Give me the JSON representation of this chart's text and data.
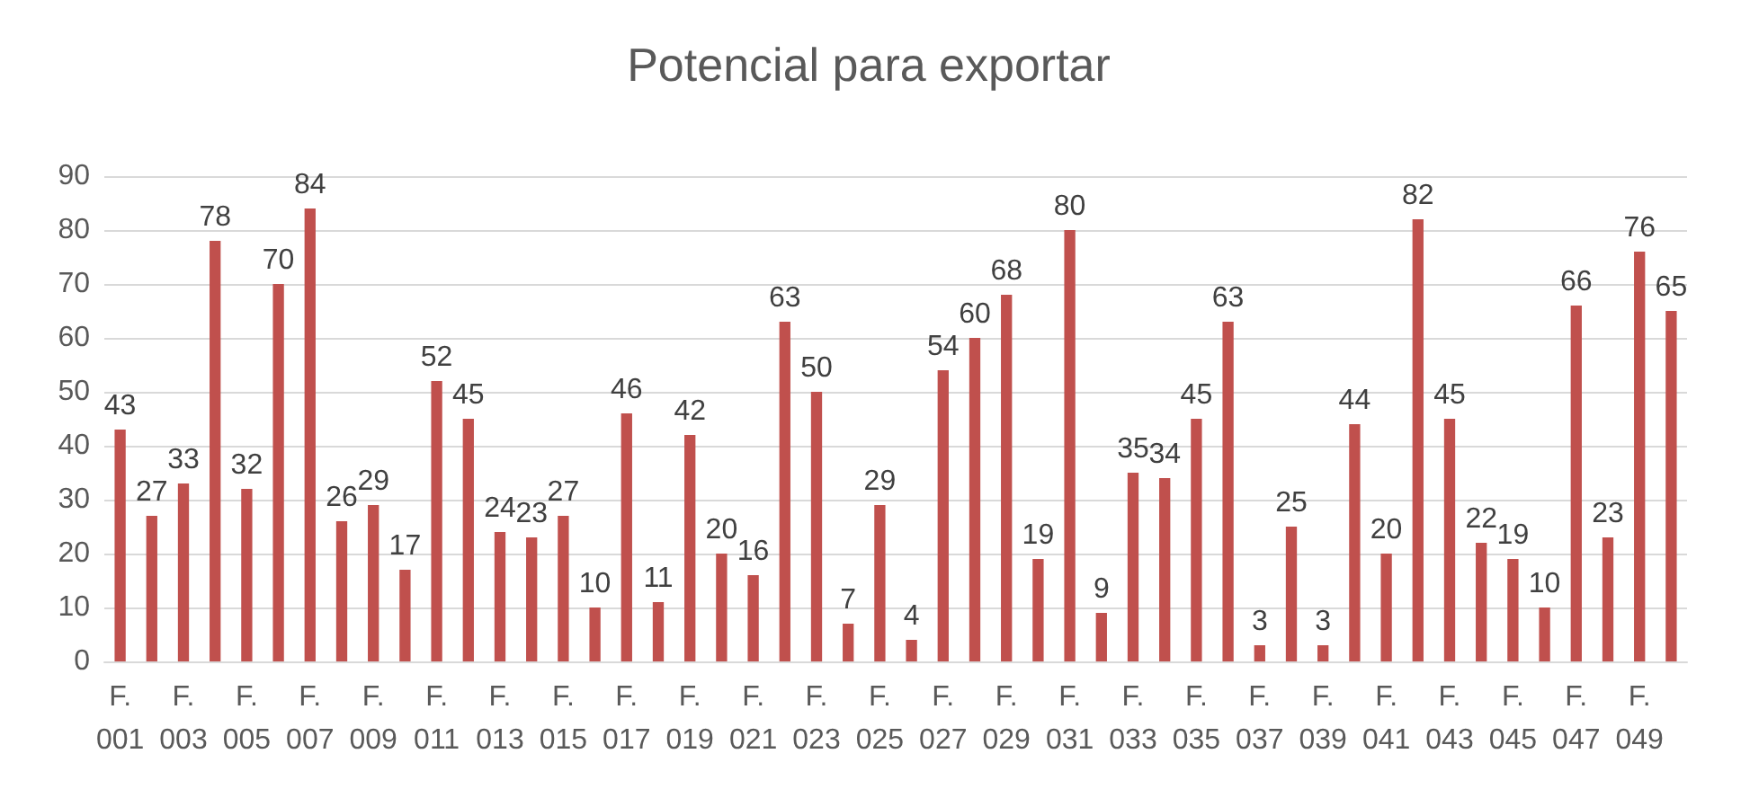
{
  "chart_data": {
    "type": "bar",
    "title": "Potencial para exportar",
    "categories": [
      "F. 001",
      null,
      "F. 003",
      null,
      "F. 005",
      null,
      "F. 007",
      null,
      "F. 009",
      null,
      "F. 011",
      null,
      "F. 013",
      null,
      "F. 015",
      null,
      "F. 017",
      null,
      "F. 019",
      null,
      "F. 021",
      null,
      "F. 023",
      null,
      "F. 025",
      null,
      "F. 027",
      null,
      "F. 029",
      null,
      "F. 031",
      null,
      "F. 033",
      null,
      "F. 035",
      null,
      "F. 037",
      null,
      "F. 039",
      null,
      "F. 041",
      null,
      "F. 043",
      null,
      "F. 045",
      null,
      "F. 047",
      null,
      "F. 049",
      null
    ],
    "values": [
      43,
      27,
      33,
      78,
      32,
      70,
      84,
      26,
      29,
      17,
      52,
      45,
      24,
      23,
      27,
      10,
      46,
      11,
      42,
      20,
      16,
      63,
      50,
      7,
      29,
      4,
      54,
      60,
      68,
      19,
      80,
      9,
      35,
      34,
      45,
      63,
      3,
      25,
      3,
      44,
      20,
      82,
      45,
      22,
      19,
      10,
      66,
      23,
      76,
      65
    ],
    "color": "#c0504d",
    "ylim": [
      0,
      90
    ],
    "yticks": [
      0,
      10,
      20,
      30,
      40,
      50,
      60,
      70,
      80,
      90
    ],
    "grid": "y",
    "data_labels": true
  }
}
